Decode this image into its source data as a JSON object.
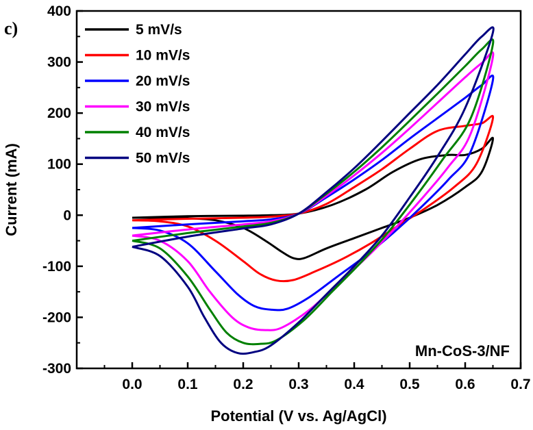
{
  "chart_data": {
    "type": "line",
    "title": "",
    "panel_label": "c)",
    "annotation": "Mn-CoS-3/NF",
    "xlabel": "Potential (V vs. Ag/AgCl)",
    "ylabel": "Current (mA)",
    "xlim": [
      -0.1,
      0.7
    ],
    "ylim": [
      -300,
      400
    ],
    "xticks": [
      "0.0",
      "0.1",
      "0.2",
      "0.3",
      "0.4",
      "0.5",
      "0.6",
      "0.7"
    ],
    "xtick_values": [
      0.0,
      0.1,
      0.2,
      0.3,
      0.4,
      0.5,
      0.6,
      0.7
    ],
    "yticks": [
      "-300",
      "-200",
      "-100",
      "0",
      "100",
      "200",
      "300",
      "400"
    ],
    "ytick_values": [
      -300,
      -200,
      -100,
      0,
      100,
      200,
      300,
      400
    ],
    "grid": false,
    "legend_position": "top-left",
    "series": [
      {
        "name": "5 mV/s",
        "color": "#000000",
        "points": [
          [
            0.0,
            -5
          ],
          [
            0.05,
            -5
          ],
          [
            0.1,
            -6
          ],
          [
            0.15,
            -10
          ],
          [
            0.2,
            -25
          ],
          [
            0.24,
            -50
          ],
          [
            0.27,
            -72
          ],
          [
            0.29,
            -84
          ],
          [
            0.31,
            -84
          ],
          [
            0.35,
            -65
          ],
          [
            0.4,
            -45
          ],
          [
            0.45,
            -25
          ],
          [
            0.5,
            -5
          ],
          [
            0.55,
            20
          ],
          [
            0.6,
            55
          ],
          [
            0.63,
            85
          ],
          [
            0.65,
            150
          ],
          [
            0.63,
            130
          ],
          [
            0.6,
            118
          ],
          [
            0.57,
            118
          ],
          [
            0.52,
            110
          ],
          [
            0.47,
            85
          ],
          [
            0.42,
            50
          ],
          [
            0.36,
            20
          ],
          [
            0.3,
            3
          ],
          [
            0.25,
            0
          ],
          [
            0.2,
            -1
          ],
          [
            0.1,
            -2
          ],
          [
            0.0,
            -5
          ]
        ]
      },
      {
        "name": "10 mV/s",
        "color": "#ff0000",
        "points": [
          [
            0.0,
            -10
          ],
          [
            0.05,
            -12
          ],
          [
            0.1,
            -22
          ],
          [
            0.15,
            -50
          ],
          [
            0.2,
            -90
          ],
          [
            0.23,
            -115
          ],
          [
            0.26,
            -128
          ],
          [
            0.29,
            -127
          ],
          [
            0.33,
            -110
          ],
          [
            0.38,
            -85
          ],
          [
            0.43,
            -55
          ],
          [
            0.48,
            -20
          ],
          [
            0.53,
            15
          ],
          [
            0.58,
            55
          ],
          [
            0.62,
            100
          ],
          [
            0.65,
            190
          ],
          [
            0.63,
            180
          ],
          [
            0.6,
            175
          ],
          [
            0.55,
            165
          ],
          [
            0.5,
            130
          ],
          [
            0.45,
            90
          ],
          [
            0.4,
            55
          ],
          [
            0.35,
            22
          ],
          [
            0.3,
            3
          ],
          [
            0.25,
            -3
          ],
          [
            0.2,
            -5
          ],
          [
            0.1,
            -7
          ],
          [
            0.0,
            -10
          ]
        ]
      },
      {
        "name": "20 mV/s",
        "color": "#0000ff",
        "points": [
          [
            0.0,
            -25
          ],
          [
            0.05,
            -30
          ],
          [
            0.1,
            -55
          ],
          [
            0.15,
            -110
          ],
          [
            0.19,
            -155
          ],
          [
            0.22,
            -178
          ],
          [
            0.25,
            -185
          ],
          [
            0.28,
            -183
          ],
          [
            0.32,
            -160
          ],
          [
            0.37,
            -120
          ],
          [
            0.42,
            -80
          ],
          [
            0.47,
            -35
          ],
          [
            0.52,
            15
          ],
          [
            0.57,
            70
          ],
          [
            0.61,
            125
          ],
          [
            0.65,
            265
          ],
          [
            0.63,
            255
          ],
          [
            0.6,
            230
          ],
          [
            0.55,
            190
          ],
          [
            0.5,
            150
          ],
          [
            0.45,
            108
          ],
          [
            0.4,
            70
          ],
          [
            0.35,
            35
          ],
          [
            0.3,
            3
          ],
          [
            0.25,
            -8
          ],
          [
            0.2,
            -12
          ],
          [
            0.1,
            -18
          ],
          [
            0.0,
            -25
          ]
        ]
      },
      {
        "name": "30 mV/s",
        "color": "#ff00ff",
        "points": [
          [
            0.0,
            -40
          ],
          [
            0.05,
            -50
          ],
          [
            0.1,
            -90
          ],
          [
            0.14,
            -150
          ],
          [
            0.18,
            -200
          ],
          [
            0.21,
            -220
          ],
          [
            0.24,
            -225
          ],
          [
            0.27,
            -220
          ],
          [
            0.32,
            -185
          ],
          [
            0.37,
            -135
          ],
          [
            0.42,
            -85
          ],
          [
            0.47,
            -30
          ],
          [
            0.52,
            30
          ],
          [
            0.57,
            95
          ],
          [
            0.61,
            160
          ],
          [
            0.65,
            310
          ],
          [
            0.63,
            298
          ],
          [
            0.6,
            270
          ],
          [
            0.55,
            220
          ],
          [
            0.5,
            170
          ],
          [
            0.45,
            122
          ],
          [
            0.4,
            78
          ],
          [
            0.35,
            38
          ],
          [
            0.3,
            3
          ],
          [
            0.25,
            -12
          ],
          [
            0.2,
            -18
          ],
          [
            0.1,
            -28
          ],
          [
            0.0,
            -40
          ]
        ]
      },
      {
        "name": "40 mV/s",
        "color": "#008000",
        "points": [
          [
            0.0,
            -50
          ],
          [
            0.05,
            -65
          ],
          [
            0.1,
            -120
          ],
          [
            0.14,
            -185
          ],
          [
            0.17,
            -230
          ],
          [
            0.2,
            -250
          ],
          [
            0.23,
            -252
          ],
          [
            0.26,
            -245
          ],
          [
            0.31,
            -205
          ],
          [
            0.36,
            -150
          ],
          [
            0.41,
            -95
          ],
          [
            0.46,
            -35
          ],
          [
            0.51,
            35
          ],
          [
            0.56,
            110
          ],
          [
            0.61,
            190
          ],
          [
            0.65,
            335
          ],
          [
            0.63,
            325
          ],
          [
            0.6,
            292
          ],
          [
            0.55,
            238
          ],
          [
            0.5,
            185
          ],
          [
            0.45,
            133
          ],
          [
            0.4,
            85
          ],
          [
            0.35,
            42
          ],
          [
            0.3,
            3
          ],
          [
            0.25,
            -15
          ],
          [
            0.2,
            -22
          ],
          [
            0.1,
            -35
          ],
          [
            0.0,
            -50
          ]
        ]
      },
      {
        "name": "50 mV/s",
        "color": "#000080",
        "points": [
          [
            0.0,
            -62
          ],
          [
            0.05,
            -80
          ],
          [
            0.1,
            -140
          ],
          [
            0.13,
            -200
          ],
          [
            0.16,
            -250
          ],
          [
            0.19,
            -270
          ],
          [
            0.22,
            -268
          ],
          [
            0.25,
            -255
          ],
          [
            0.3,
            -210
          ],
          [
            0.35,
            -155
          ],
          [
            0.4,
            -100
          ],
          [
            0.45,
            -40
          ],
          [
            0.5,
            35
          ],
          [
            0.55,
            115
          ],
          [
            0.6,
            210
          ],
          [
            0.65,
            358
          ],
          [
            0.63,
            350
          ],
          [
            0.6,
            315
          ],
          [
            0.55,
            255
          ],
          [
            0.5,
            200
          ],
          [
            0.45,
            145
          ],
          [
            0.4,
            92
          ],
          [
            0.35,
            45
          ],
          [
            0.3,
            3
          ],
          [
            0.25,
            -18
          ],
          [
            0.2,
            -26
          ],
          [
            0.1,
            -42
          ],
          [
            0.0,
            -62
          ]
        ]
      }
    ]
  }
}
